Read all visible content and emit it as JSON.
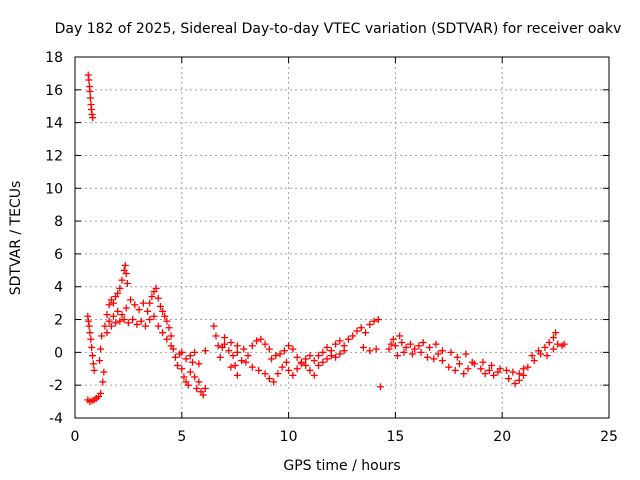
{
  "chart_data": {
    "type": "scatter",
    "title": "Day 182 of 2025, Sidereal Day-to-day VTEC variation (SDTVAR) for receiver oakv",
    "xlabel": "GPS time / hours",
    "ylabel": "SDTVAR / TECUs",
    "xlim": [
      0,
      25
    ],
    "ylim": [
      -4,
      18
    ],
    "xticks": [
      0,
      5,
      10,
      15,
      20,
      25
    ],
    "yticks": [
      -4,
      -2,
      0,
      2,
      4,
      6,
      8,
      10,
      12,
      14,
      16,
      18
    ],
    "xtick_labels": [
      "0",
      "5",
      "10",
      "15",
      "20",
      "25"
    ],
    "ytick_labels": [
      "-4",
      "-2",
      "0",
      "2",
      "4",
      "6",
      "8",
      "10",
      "12",
      "14",
      "16",
      "18"
    ],
    "grid": true,
    "marker": "+",
    "marker_color": "#ff0000",
    "series": [
      {
        "name": "SDTVAR",
        "points": [
          [
            0.62,
            16.9
          ],
          [
            0.65,
            16.6
          ],
          [
            0.68,
            16.2
          ],
          [
            0.7,
            15.9
          ],
          [
            0.72,
            15.5
          ],
          [
            0.75,
            15.1
          ],
          [
            0.77,
            14.8
          ],
          [
            0.8,
            14.5
          ],
          [
            0.83,
            14.3
          ],
          [
            0.6,
            2.2
          ],
          [
            0.63,
            1.9
          ],
          [
            0.66,
            1.6
          ],
          [
            0.7,
            1.2
          ],
          [
            0.74,
            0.8
          ],
          [
            0.78,
            0.3
          ],
          [
            0.82,
            -0.2
          ],
          [
            0.86,
            -0.7
          ],
          [
            0.9,
            -1.1
          ],
          [
            0.6,
            -2.9
          ],
          [
            0.7,
            -3.0
          ],
          [
            0.8,
            -2.95
          ],
          [
            0.9,
            -2.9
          ],
          [
            1.0,
            -2.8
          ],
          [
            1.1,
            -2.7
          ],
          [
            1.2,
            -2.5
          ],
          [
            1.15,
            -0.5
          ],
          [
            1.2,
            0.2
          ],
          [
            1.25,
            1.0
          ],
          [
            1.3,
            -1.8
          ],
          [
            1.35,
            -1.2
          ],
          [
            1.4,
            1.6
          ],
          [
            1.5,
            2.3
          ],
          [
            1.6,
            2.9
          ],
          [
            1.7,
            3.2
          ],
          [
            1.8,
            3.0
          ],
          [
            1.9,
            3.4
          ],
          [
            2.0,
            3.6
          ],
          [
            2.1,
            3.9
          ],
          [
            2.2,
            4.4
          ],
          [
            2.3,
            5.0
          ],
          [
            2.35,
            5.3
          ],
          [
            2.4,
            4.8
          ],
          [
            2.45,
            4.2
          ],
          [
            1.6,
            1.9
          ],
          [
            1.8,
            2.2
          ],
          [
            2.0,
            2.5
          ],
          [
            2.2,
            2.3
          ],
          [
            2.4,
            2.7
          ],
          [
            2.6,
            3.2
          ],
          [
            2.8,
            2.9
          ],
          [
            3.0,
            2.6
          ],
          [
            3.2,
            3.0
          ],
          [
            3.4,
            2.5
          ],
          [
            1.5,
            1.2
          ],
          [
            1.7,
            1.6
          ],
          [
            1.9,
            1.8
          ],
          [
            2.1,
            1.9
          ],
          [
            2.3,
            2.0
          ],
          [
            2.5,
            1.8
          ],
          [
            2.7,
            2.0
          ],
          [
            2.9,
            1.7
          ],
          [
            3.1,
            1.9
          ],
          [
            3.3,
            1.6
          ],
          [
            3.5,
            3.0
          ],
          [
            3.6,
            3.4
          ],
          [
            3.7,
            3.7
          ],
          [
            3.8,
            3.9
          ],
          [
            3.9,
            3.3
          ],
          [
            4.0,
            2.8
          ],
          [
            4.1,
            2.5
          ],
          [
            4.2,
            2.2
          ],
          [
            4.3,
            1.9
          ],
          [
            4.4,
            1.5
          ],
          [
            4.5,
            1.0
          ],
          [
            3.5,
            2.0
          ],
          [
            3.7,
            2.2
          ],
          [
            3.9,
            1.6
          ],
          [
            4.1,
            1.2
          ],
          [
            4.3,
            0.8
          ],
          [
            4.5,
            0.4
          ],
          [
            4.6,
            0.2
          ],
          [
            4.7,
            -0.3
          ],
          [
            4.8,
            -0.8
          ],
          [
            4.9,
            -0.1
          ],
          [
            5.0,
            -1.0
          ],
          [
            5.1,
            -1.5
          ],
          [
            5.2,
            -1.8
          ],
          [
            5.3,
            -2.0
          ],
          [
            5.4,
            -1.2
          ],
          [
            5.5,
            -0.6
          ],
          [
            5.6,
            -1.5
          ],
          [
            5.7,
            -2.2
          ],
          [
            5.8,
            -1.8
          ],
          [
            5.9,
            -2.4
          ],
          [
            6.0,
            -2.6
          ],
          [
            6.1,
            -2.2
          ],
          [
            5.0,
            0.0
          ],
          [
            5.2,
            -0.4
          ],
          [
            5.4,
            -0.2
          ],
          [
            5.6,
            0.0
          ],
          [
            5.8,
            -0.7
          ],
          [
            6.1,
            0.1
          ],
          [
            6.5,
            1.6
          ],
          [
            6.6,
            1.0
          ],
          [
            6.7,
            0.4
          ],
          [
            6.8,
            -0.3
          ],
          [
            6.9,
            0.3
          ],
          [
            7.0,
            0.5
          ],
          [
            7.2,
            0.1
          ],
          [
            7.4,
            -0.2
          ],
          [
            7.6,
            0.0
          ],
          [
            7.8,
            -0.5
          ],
          [
            7.5,
            -0.8
          ],
          [
            7.6,
            -1.4
          ],
          [
            7.3,
            -0.9
          ],
          [
            7.0,
            0.9
          ],
          [
            7.3,
            0.6
          ],
          [
            7.6,
            0.4
          ],
          [
            7.9,
            0.2
          ],
          [
            8.1,
            -0.2
          ],
          [
            8.3,
            0.4
          ],
          [
            8.5,
            0.7
          ],
          [
            8.7,
            0.8
          ],
          [
            8.9,
            0.5
          ],
          [
            9.1,
            0.2
          ],
          [
            8.0,
            -0.6
          ],
          [
            8.3,
            -0.9
          ],
          [
            8.6,
            -1.1
          ],
          [
            8.9,
            -1.3
          ],
          [
            9.1,
            -1.6
          ],
          [
            9.3,
            -1.8
          ],
          [
            9.5,
            -1.3
          ],
          [
            9.7,
            -0.9
          ],
          [
            9.9,
            -0.6
          ],
          [
            9.2,
            -0.4
          ],
          [
            9.4,
            -0.2
          ],
          [
            9.6,
            -0.1
          ],
          [
            9.8,
            0.1
          ],
          [
            10.0,
            0.4
          ],
          [
            10.2,
            0.2
          ],
          [
            10.4,
            -0.3
          ],
          [
            10.6,
            -0.6
          ],
          [
            10.8,
            -0.8
          ],
          [
            11.0,
            -1.1
          ],
          [
            11.2,
            -1.4
          ],
          [
            10.0,
            -1.1
          ],
          [
            10.2,
            -1.4
          ],
          [
            10.4,
            -1.0
          ],
          [
            10.6,
            -0.7
          ],
          [
            10.8,
            -0.4
          ],
          [
            11.0,
            -0.2
          ],
          [
            11.2,
            -0.5
          ],
          [
            11.4,
            -0.2
          ],
          [
            11.6,
            0.0
          ],
          [
            11.8,
            0.3
          ],
          [
            12.0,
            0.1
          ],
          [
            12.2,
            0.5
          ],
          [
            12.4,
            0.7
          ],
          [
            12.6,
            0.4
          ],
          [
            12.8,
            0.8
          ],
          [
            13.0,
            1.0
          ],
          [
            11.4,
            -0.8
          ],
          [
            11.6,
            -0.6
          ],
          [
            11.8,
            -0.4
          ],
          [
            12.0,
            -0.2
          ],
          [
            12.2,
            -0.3
          ],
          [
            12.4,
            -0.1
          ],
          [
            12.6,
            0.1
          ],
          [
            13.2,
            1.3
          ],
          [
            13.4,
            1.5
          ],
          [
            13.6,
            1.2
          ],
          [
            13.8,
            1.7
          ],
          [
            14.0,
            1.9
          ],
          [
            14.2,
            2.0
          ],
          [
            13.5,
            0.3
          ],
          [
            13.8,
            0.1
          ],
          [
            14.1,
            0.2
          ],
          [
            14.3,
            -2.1
          ],
          [
            14.7,
            0.2
          ],
          [
            14.8,
            0.5
          ],
          [
            14.9,
            0.8
          ],
          [
            15.0,
            0.4
          ],
          [
            15.2,
            1.0
          ],
          [
            15.3,
            0.6
          ],
          [
            15.5,
            0.3
          ],
          [
            15.7,
            0.5
          ],
          [
            15.9,
            0.2
          ],
          [
            16.1,
            0.4
          ],
          [
            15.1,
            -0.2
          ],
          [
            15.4,
            0.0
          ],
          [
            15.8,
            -0.1
          ],
          [
            16.2,
            0.0
          ],
          [
            16.5,
            -0.3
          ],
          [
            16.8,
            -0.4
          ],
          [
            17.0,
            -0.1
          ],
          [
            17.2,
            0.1
          ],
          [
            16.3,
            0.6
          ],
          [
            16.6,
            0.3
          ],
          [
            16.9,
            0.5
          ],
          [
            17.2,
            -0.5
          ],
          [
            17.5,
            -0.9
          ],
          [
            17.8,
            -1.1
          ],
          [
            18.0,
            -0.7
          ],
          [
            18.2,
            -1.3
          ],
          [
            18.4,
            -1.0
          ],
          [
            18.6,
            -0.6
          ],
          [
            17.6,
            0.0
          ],
          [
            17.9,
            -0.3
          ],
          [
            18.3,
            -0.1
          ],
          [
            18.7,
            -0.7
          ],
          [
            19.0,
            -1.0
          ],
          [
            19.2,
            -1.3
          ],
          [
            19.4,
            -1.1
          ],
          [
            19.6,
            -1.4
          ],
          [
            19.8,
            -1.2
          ],
          [
            19.1,
            -0.6
          ],
          [
            19.5,
            -0.8
          ],
          [
            19.9,
            -1.0
          ],
          [
            20.2,
            -1.1
          ],
          [
            20.5,
            -1.2
          ],
          [
            20.8,
            -1.3
          ],
          [
            21.0,
            -1.0
          ],
          [
            20.3,
            -1.6
          ],
          [
            20.6,
            -1.9
          ],
          [
            20.8,
            -1.7
          ],
          [
            21.0,
            -1.4
          ],
          [
            21.2,
            -0.9
          ],
          [
            21.5,
            -0.5
          ],
          [
            21.8,
            -0.1
          ],
          [
            22.0,
            0.3
          ],
          [
            22.2,
            0.6
          ],
          [
            22.4,
            0.9
          ],
          [
            22.5,
            1.2
          ],
          [
            21.4,
            -0.2
          ],
          [
            21.7,
            0.1
          ],
          [
            22.1,
            -0.2
          ],
          [
            22.4,
            0.2
          ],
          [
            22.6,
            0.5
          ],
          [
            22.8,
            0.4
          ],
          [
            22.9,
            0.5
          ]
        ]
      }
    ]
  }
}
